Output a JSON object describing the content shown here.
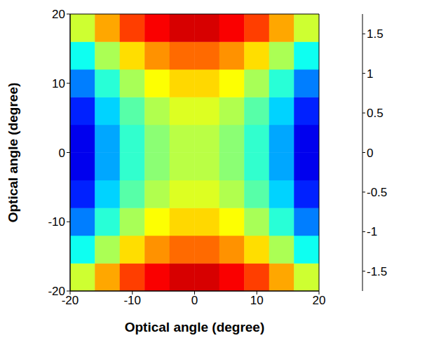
{
  "chart_data": {
    "type": "heatmap",
    "x_label": "Optical angle (degree)",
    "y_label": "Optical angle (degree)",
    "x": [
      -18,
      -14,
      -10,
      -6,
      -2,
      2,
      6,
      10,
      14,
      18
    ],
    "y": [
      -18,
      -14,
      -10,
      -6,
      -2,
      2,
      6,
      10,
      14,
      18
    ],
    "z": [
      [
        0.27,
        0.74,
        1.1,
        1.33,
        1.45,
        1.45,
        1.33,
        1.1,
        0.74,
        0.27
      ],
      [
        -0.39,
        0.15,
        0.55,
        0.81,
        0.95,
        0.95,
        0.81,
        0.55,
        0.15,
        -0.39
      ],
      [
        -0.88,
        -0.3,
        0.14,
        0.43,
        0.57,
        0.57,
        0.43,
        0.14,
        -0.3,
        -0.88
      ],
      [
        -1.2,
        -0.59,
        -0.14,
        0.17,
        0.32,
        0.32,
        0.17,
        -0.14,
        -0.59,
        -1.2
      ],
      [
        -1.37,
        -0.74,
        -0.27,
        0.04,
        0.2,
        0.2,
        0.04,
        -0.27,
        -0.74,
        -1.37
      ],
      [
        -1.37,
        -0.74,
        -0.27,
        0.04,
        0.2,
        0.2,
        0.04,
        -0.27,
        -0.74,
        -1.37
      ],
      [
        -1.2,
        -0.59,
        -0.14,
        0.17,
        0.32,
        0.32,
        0.17,
        -0.14,
        -0.59,
        -1.2
      ],
      [
        -0.88,
        -0.3,
        0.14,
        0.43,
        0.57,
        0.57,
        0.43,
        0.14,
        -0.3,
        -0.88
      ],
      [
        -0.39,
        0.15,
        0.55,
        0.81,
        0.95,
        0.95,
        0.81,
        0.55,
        0.15,
        -0.39
      ],
      [
        0.27,
        0.74,
        1.1,
        1.33,
        1.45,
        1.45,
        1.33,
        1.1,
        0.74,
        0.27
      ]
    ],
    "xlim": [
      -20,
      20
    ],
    "ylim": [
      -20,
      20
    ],
    "xticks": [
      -20,
      -10,
      0,
      10,
      20
    ],
    "yticks": [
      -20,
      -10,
      0,
      10,
      20
    ],
    "colorbar_range": [
      -1.75,
      1.75
    ],
    "colorbar_ticks": [
      -1.5,
      -1,
      -0.5,
      0,
      0.5,
      1,
      1.5
    ]
  }
}
